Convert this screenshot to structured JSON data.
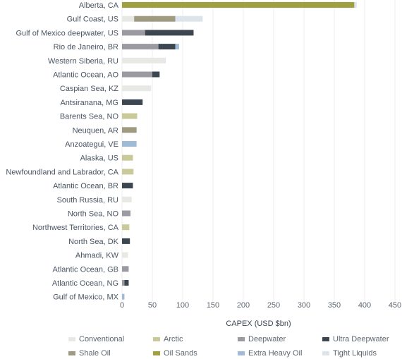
{
  "chart_data": {
    "type": "bar",
    "orientation": "horizontal",
    "stacked": true,
    "categories": [
      "Alberta, CA",
      "Gulf Coast, US",
      "Gulf of Mexico deepwater, US",
      "Rio de Janeiro, BR",
      "Western Siberia, RU",
      "Atlantic Ocean, AO",
      "Caspian Sea, KZ",
      "Antsiranana, MG",
      "Barents Sea, NO",
      "Neuquen, AR",
      "Anzoategui, VE",
      "Alaska, US",
      "Newfoundland and Labrador, CA",
      "Atlantic Ocean, BR",
      "South Russia, RU",
      "North Sea, NO",
      "Northwest Territories, CA",
      "North Sea, DK",
      "Ahmadi, KW",
      "Atlantic Ocean, GB",
      "Atlantic Ocean, NG",
      "Gulf of Mexico, MX"
    ],
    "series": [
      {
        "name": "Conventional",
        "color": "#e8e8e4",
        "values": [
          0,
          20,
          0,
          0,
          70,
          0,
          48,
          0,
          0,
          0,
          0,
          0,
          0,
          0,
          16,
          0,
          0,
          0,
          10,
          0,
          0,
          0
        ]
      },
      {
        "name": "Arctic",
        "color": "#c9c99a",
        "values": [
          0,
          0,
          0,
          0,
          0,
          0,
          0,
          0,
          25,
          0,
          0,
          18,
          19,
          0,
          0,
          0,
          12,
          0,
          0,
          0,
          0,
          0
        ]
      },
      {
        "name": "Deepwater",
        "color": "#9a9aa0",
        "values": [
          0,
          0,
          38,
          60,
          0,
          50,
          0,
          0,
          0,
          0,
          0,
          0,
          0,
          0,
          0,
          14,
          0,
          0,
          0,
          11,
          4,
          0
        ]
      },
      {
        "name": "Ultra Deepwater",
        "color": "#3b4651",
        "values": [
          0,
          0,
          80,
          28,
          0,
          12,
          0,
          34,
          0,
          0,
          0,
          0,
          0,
          18,
          0,
          0,
          0,
          13,
          0,
          0,
          7,
          0
        ]
      },
      {
        "name": "Shale Oil",
        "color": "#a09a80",
        "values": [
          0,
          68,
          0,
          0,
          0,
          0,
          0,
          0,
          0,
          24,
          0,
          0,
          0,
          0,
          0,
          0,
          0,
          0,
          0,
          0,
          0,
          0
        ]
      },
      {
        "name": "Oil Sands",
        "color": "#a0a040",
        "values": [
          383,
          0,
          0,
          0,
          0,
          0,
          0,
          0,
          0,
          0,
          0,
          0,
          0,
          0,
          0,
          0,
          0,
          0,
          0,
          0,
          0,
          0
        ]
      },
      {
        "name": "Extra Heavy Oil",
        "color": "#9fbbd6",
        "values": [
          0,
          0,
          0,
          6,
          0,
          0,
          0,
          0,
          0,
          0,
          24,
          0,
          0,
          0,
          0,
          0,
          0,
          0,
          0,
          0,
          0,
          4
        ]
      },
      {
        "name": "Tight Liquids",
        "color": "#dce4ec",
        "values": [
          4,
          45,
          0,
          0,
          2,
          0,
          0,
          0,
          0,
          0,
          0,
          0,
          0,
          0,
          0,
          0,
          0,
          0,
          0,
          0,
          0,
          0
        ]
      }
    ],
    "xlabel": "CAPEX (USD $bn)",
    "xlim": [
      0,
      450
    ],
    "xticks": [
      0,
      50,
      100,
      150,
      200,
      250,
      300,
      350,
      400,
      450
    ],
    "grid": true,
    "legend_position": "bottom"
  }
}
